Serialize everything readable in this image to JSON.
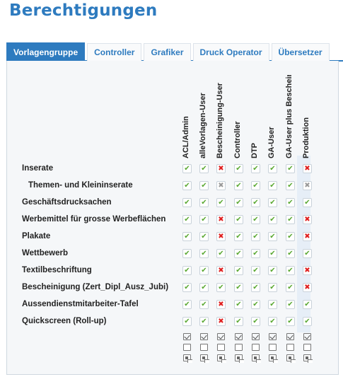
{
  "page": {
    "title": "Berechtigungen"
  },
  "tabs": [
    {
      "label": "Vorlagengruppe",
      "active": true
    },
    {
      "label": "Controller",
      "active": false
    },
    {
      "label": "Grafiker",
      "active": false
    },
    {
      "label": "Druck Operator",
      "active": false
    },
    {
      "label": "Übersetzer",
      "active": false
    }
  ],
  "columns": [
    "ACL/Admin",
    "alleVorlagen-User",
    "Bescheinigung-User",
    "Controller",
    "DTP",
    "GA-User",
    "GA-User plus Bescheinigung",
    "Produktion"
  ],
  "rows": [
    {
      "label": "Inserate",
      "indent": false,
      "values": [
        "yes",
        "yes",
        "no",
        "yes",
        "yes",
        "yes",
        "yes",
        "no"
      ]
    },
    {
      "label": "Themen- und Kleininserate",
      "indent": true,
      "values": [
        "yes",
        "yes",
        "na",
        "yes",
        "yes",
        "yes",
        "yes",
        "na"
      ]
    },
    {
      "label": "Geschäftsdrucksachen",
      "indent": false,
      "values": [
        "yes",
        "yes",
        "yes",
        "yes",
        "yes",
        "yes",
        "yes",
        "yes"
      ]
    },
    {
      "label": "Werbemittel für grosse Werbeflächen",
      "indent": false,
      "values": [
        "yes",
        "yes",
        "no",
        "yes",
        "yes",
        "yes",
        "yes",
        "no"
      ]
    },
    {
      "label": "Plakate",
      "indent": false,
      "values": [
        "yes",
        "yes",
        "no",
        "yes",
        "yes",
        "yes",
        "yes",
        "no"
      ]
    },
    {
      "label": "Wettbewerb",
      "indent": false,
      "values": [
        "yes",
        "yes",
        "yes",
        "yes",
        "yes",
        "yes",
        "yes",
        "yes"
      ]
    },
    {
      "label": "Textilbeschriftung",
      "indent": false,
      "values": [
        "yes",
        "yes",
        "no",
        "yes",
        "yes",
        "yes",
        "yes",
        "no"
      ]
    },
    {
      "label": "Bescheinigung (Zert_Dipl_Ausz_Jubi)",
      "indent": false,
      "values": [
        "yes",
        "yes",
        "yes",
        "yes",
        "yes",
        "yes",
        "yes",
        "no"
      ]
    },
    {
      "label": "Aussendienstmitarbeiter-Tafel",
      "indent": false,
      "values": [
        "yes",
        "yes",
        "no",
        "yes",
        "yes",
        "yes",
        "yes",
        "yes"
      ]
    },
    {
      "label": "Quickscreen (Roll-up)",
      "indent": false,
      "values": [
        "yes",
        "yes",
        "no",
        "yes",
        "yes",
        "yes",
        "yes",
        "yes"
      ]
    }
  ],
  "symbols": {
    "yes": "✔",
    "no": "✖",
    "na": "✖"
  },
  "colors": {
    "accent": "#2e7bbf",
    "yes": "#5aa832",
    "no": "#e02020",
    "na": "#9a9a9a"
  },
  "column_tools": [
    "select-all-icon",
    "select-none-icon",
    "invert-selection-icon"
  ]
}
